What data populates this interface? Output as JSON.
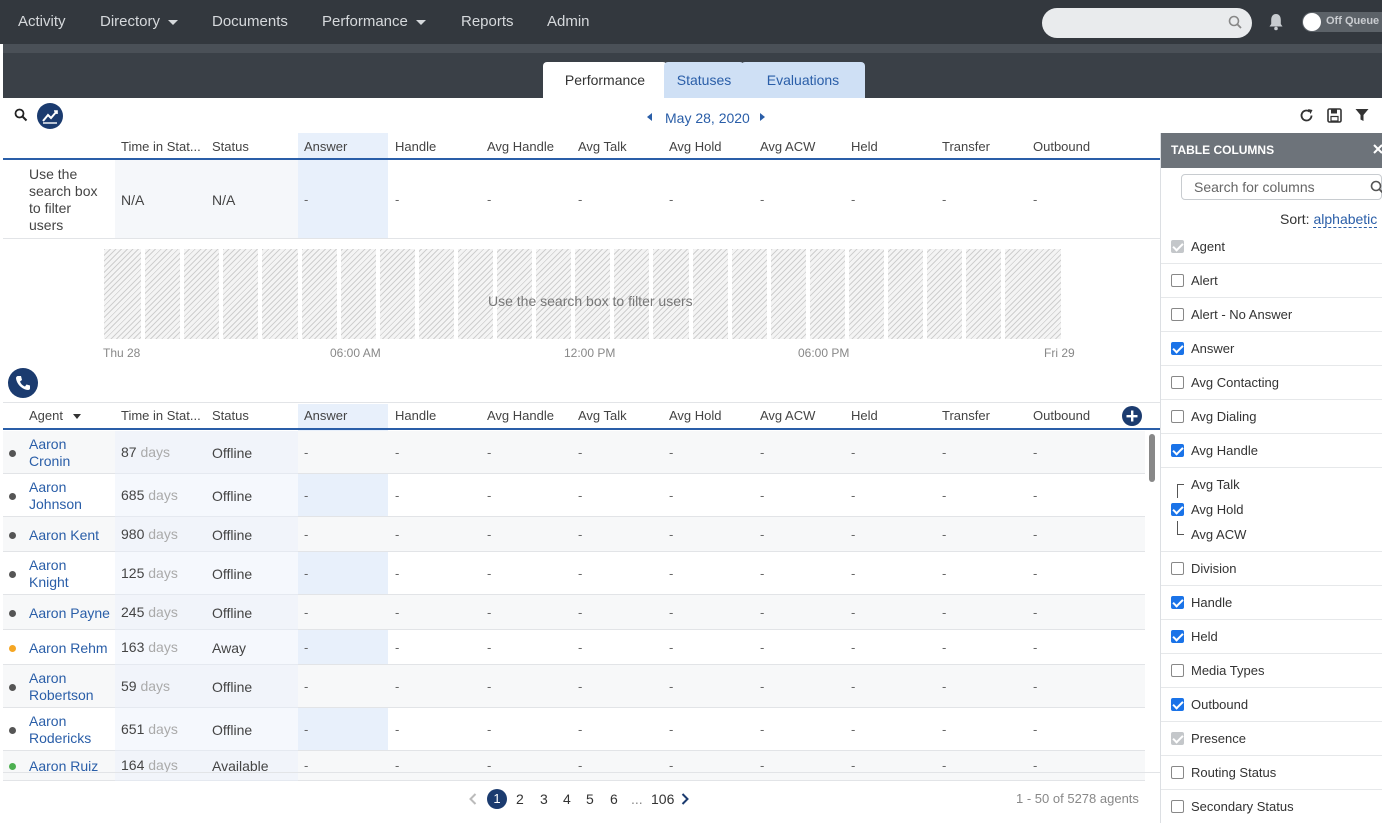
{
  "nav": {
    "items": [
      "Activity",
      "Directory",
      "Documents",
      "Performance",
      "Reports",
      "Admin"
    ],
    "queue_label": "Off Queue"
  },
  "tabs": [
    "Performance",
    "Statuses",
    "Evaluations"
  ],
  "date": "May 28, 2020",
  "columns_top": [
    "Time in Stat...",
    "Status",
    "Answer",
    "Handle",
    "Avg Handle",
    "Avg Talk",
    "Avg Hold",
    "Avg ACW",
    "Held",
    "Transfer",
    "Outbound"
  ],
  "summary_row": {
    "hint": "Use the search box to filter users",
    "time": "N/A",
    "status": "N/A",
    "dash": "-"
  },
  "timeline": {
    "message": "Use the search box to filter users",
    "labels": [
      "Thu 28",
      "06:00 AM",
      "12:00 PM",
      "06:00 PM",
      "Fri 29"
    ]
  },
  "columns_agents": [
    "Agent",
    "Time in Stat...",
    "Status",
    "Answer",
    "Handle",
    "Avg Handle",
    "Avg Talk",
    "Avg Hold",
    "Avg ACW",
    "Held",
    "Transfer",
    "Outbound"
  ],
  "agents": [
    {
      "first": "Aaron",
      "last": "Cronin",
      "days": "87",
      "status": "Offline",
      "dot": "#555555"
    },
    {
      "first": "Aaron",
      "last": "Johnson",
      "days": "685",
      "status": "Offline",
      "dot": "#555555"
    },
    {
      "first": "Aaron Kent",
      "last": "",
      "days": "980",
      "status": "Offline",
      "dot": "#555555"
    },
    {
      "first": "Aaron",
      "last": "Knight",
      "days": "125",
      "status": "Offline",
      "dot": "#555555"
    },
    {
      "first": "Aaron Payne",
      "last": "",
      "days": "245",
      "status": "Offline",
      "dot": "#555555"
    },
    {
      "first": "Aaron Rehm",
      "last": "",
      "days": "163",
      "status": "Away",
      "dot": "#f5a623"
    },
    {
      "first": "Aaron",
      "last": "Robertson",
      "days": "59",
      "status": "Offline",
      "dot": "#555555"
    },
    {
      "first": "Aaron",
      "last": "Rodericks",
      "days": "651",
      "status": "Offline",
      "dot": "#555555"
    },
    {
      "first": "Aaron Ruiz",
      "last": "",
      "days": "164",
      "status": "Available",
      "dot": "#4caf50"
    }
  ],
  "days_unit": "days",
  "pager": {
    "pages": [
      "1",
      "2",
      "3",
      "4",
      "5",
      "6",
      "...",
      "106"
    ],
    "range": "1 - 50",
    "of": "of",
    "total": "5278 agents"
  },
  "panel": {
    "title": "TABLE COLUMNS",
    "search_placeholder": "Search for columns",
    "sort_label": "Sort:",
    "sort_value": "alphabetic",
    "items": [
      {
        "label": "Agent",
        "state": "dis"
      },
      {
        "label": "Alert",
        "state": "off"
      },
      {
        "label": "Alert - No Answer",
        "state": "off"
      },
      {
        "label": "Answer",
        "state": "on"
      },
      {
        "label": "Avg Contacting",
        "state": "off"
      },
      {
        "label": "Avg Dialing",
        "state": "off"
      },
      {
        "label": "Avg Handle",
        "state": "on"
      },
      {
        "label": "Division",
        "state": "off"
      },
      {
        "label": "Handle",
        "state": "on"
      },
      {
        "label": "Held",
        "state": "on"
      },
      {
        "label": "Media Types",
        "state": "off"
      },
      {
        "label": "Outbound",
        "state": "on"
      },
      {
        "label": "Presence",
        "state": "dis"
      },
      {
        "label": "Routing Status",
        "state": "off"
      },
      {
        "label": "Secondary Status",
        "state": "off"
      }
    ],
    "sub_items": [
      "Avg Talk",
      "Avg Hold",
      "Avg ACW"
    ]
  }
}
